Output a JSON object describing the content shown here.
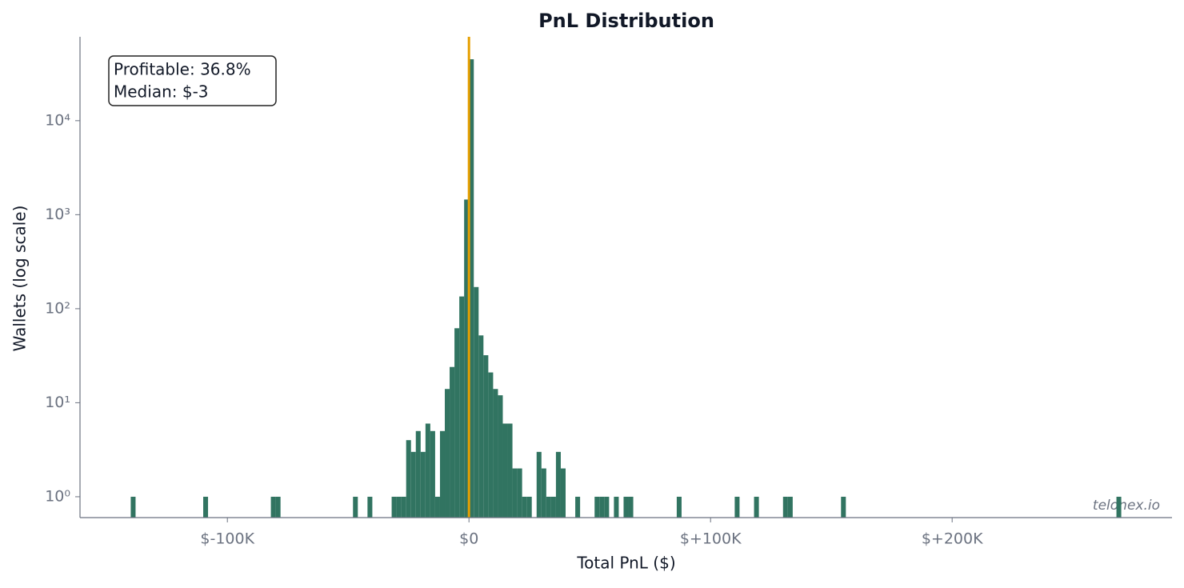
{
  "chart_data": {
    "type": "histogram",
    "title": "PnL Distribution",
    "x_label": "Total PnL ($)",
    "y_label": "Wallets (log scale)",
    "annotation": [
      "Profitable: 36.8%",
      "Median: $-3"
    ],
    "watermark": "telonex.io",
    "color": "#317461",
    "vline": {
      "x": -3,
      "color": "#e69f00"
    },
    "log_y": true,
    "xlim": [
      -161000,
      291000
    ],
    "ylim": [
      0.6,
      78000
    ],
    "xticks": [
      {
        "value": -100000,
        "label": "$-100K"
      },
      {
        "value": 0,
        "label": "$0"
      },
      {
        "value": 100000,
        "label": "$+100K"
      },
      {
        "value": 200000,
        "label": "$+200K"
      }
    ],
    "yticks": [
      {
        "value": 1,
        "label": "10⁰"
      },
      {
        "value": 10,
        "label": "10¹"
      },
      {
        "value": 100,
        "label": "10²"
      },
      {
        "value": 1000,
        "label": "10³"
      },
      {
        "value": 10000,
        "label": "10⁴"
      }
    ],
    "bins": [
      -140000,
      -138000,
      -136000,
      -134000,
      -132000,
      -130000,
      -128000,
      -126000,
      -124000,
      -122000,
      -120000,
      -118000,
      -116000,
      -114000,
      -112000,
      -110000,
      -108000,
      -106000,
      -104000,
      -102000,
      -100000,
      -98000,
      -96000,
      -94000,
      -92000,
      -90000,
      -88000,
      -86000,
      -84000,
      -82000,
      -80000,
      -78000,
      -76000,
      -74000,
      -72000,
      -70000,
      -68000,
      -66000,
      -64000,
      -62000,
      -60000,
      -58000,
      -56000,
      -54000,
      -52000,
      -50000,
      -48000,
      -46000,
      -44000,
      -42000,
      -40000,
      -38000,
      -36000,
      -34000,
      -32000,
      -30000,
      -28000,
      -26000,
      -24000,
      -22000,
      -20000,
      -18000,
      -16000,
      -14000,
      -12000,
      -10000,
      -8000,
      -6000,
      -4000,
      -2000,
      0,
      2000,
      4000,
      6000,
      8000,
      10000,
      12000,
      14000,
      16000,
      18000,
      20000,
      22000,
      24000,
      26000,
      28000,
      30000,
      32000,
      34000,
      36000,
      38000,
      40000,
      42000,
      44000,
      46000,
      48000,
      50000,
      52000,
      54000,
      56000,
      58000,
      60000,
      62000,
      64000,
      66000,
      68000,
      70000,
      72000,
      74000,
      76000,
      78000,
      80000,
      82000,
      84000,
      86000,
      88000,
      90000,
      92000,
      94000,
      96000,
      98000,
      100000,
      102000,
      104000,
      106000,
      108000,
      110000,
      112000,
      114000,
      116000,
      118000,
      120000,
      122000,
      124000,
      126000,
      128000,
      130000,
      132000,
      134000,
      136000,
      138000,
      140000,
      142000,
      144000,
      146000,
      148000,
      150000,
      152000,
      154000,
      156000,
      158000,
      160000,
      162000,
      164000,
      166000,
      168000,
      170000,
      172000,
      174000,
      176000,
      178000,
      180000,
      182000,
      184000,
      186000,
      188000,
      190000,
      192000,
      194000,
      196000,
      198000,
      200000,
      202000,
      204000,
      206000,
      208000,
      210000,
      212000,
      214000,
      216000,
      218000,
      220000,
      222000,
      224000,
      226000,
      228000,
      230000,
      232000,
      234000,
      236000,
      238000,
      240000,
      242000,
      244000,
      246000,
      248000,
      250000,
      252000,
      254000,
      256000,
      258000,
      260000,
      262000,
      264000,
      266000,
      268000,
      270000
    ],
    "counts": [
      1,
      0,
      0,
      0,
      0,
      0,
      0,
      0,
      0,
      0,
      0,
      0,
      0,
      0,
      0,
      1,
      0,
      0,
      0,
      0,
      0,
      0,
      0,
      0,
      0,
      0,
      0,
      0,
      0,
      1,
      1,
      0,
      0,
      0,
      0,
      0,
      0,
      0,
      0,
      0,
      0,
      0,
      0,
      0,
      0,
      0,
      1,
      0,
      0,
      1,
      0,
      0,
      0,
      0,
      1,
      1,
      1,
      4,
      3,
      5,
      3,
      6,
      5,
      1,
      5,
      14,
      24,
      62,
      135,
      1450,
      45000,
      170,
      52,
      32,
      21,
      14,
      12,
      6,
      6,
      2,
      2,
      1,
      1,
      0,
      3,
      2,
      1,
      1,
      3,
      2,
      0,
      0,
      1,
      0,
      0,
      0,
      1,
      1,
      1,
      0,
      1,
      0,
      1,
      1,
      0,
      0,
      0,
      0,
      0,
      0,
      0,
      0,
      0,
      1,
      0,
      0,
      0,
      0,
      0,
      0,
      0,
      0,
      0,
      0,
      0,
      1,
      0,
      0,
      0,
      1,
      0,
      0,
      0,
      0,
      0,
      1,
      1,
      0,
      0,
      0,
      0,
      0,
      0,
      0,
      0,
      0,
      0,
      1,
      0,
      0,
      0,
      0,
      0,
      0,
      0,
      0,
      0,
      0,
      0,
      0,
      0,
      0,
      0,
      0,
      0,
      0,
      0,
      0,
      0,
      0,
      0,
      0,
      0,
      0,
      0,
      0,
      0,
      0,
      0,
      0,
      0,
      0,
      0,
      0,
      0,
      0,
      0,
      0,
      0,
      0,
      0,
      0,
      0,
      0,
      0,
      0,
      0,
      0,
      0,
      0,
      0,
      0,
      0,
      0,
      1
    ]
  }
}
